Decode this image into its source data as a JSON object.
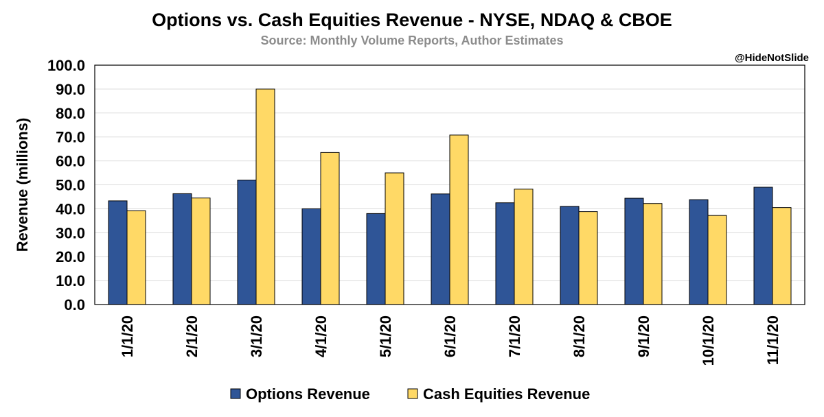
{
  "chart_data": {
    "type": "bar",
    "title": "Options vs. Cash Equities Revenue - NYSE, NDAQ & CBOE",
    "subtitle": "Source: Monthly Volume Reports, Author Estimates",
    "watermark": "@HideNotSlide",
    "xlabel": "",
    "ylabel": "Revenue (millions)",
    "ylim": [
      0,
      100
    ],
    "ytick_step": 10,
    "ytick_labels": [
      "0.0",
      "10.0",
      "20.0",
      "30.0",
      "40.0",
      "50.0",
      "60.0",
      "70.0",
      "80.0",
      "90.0",
      "100.0"
    ],
    "grid": true,
    "legend_position": "bottom",
    "categories": [
      "1/1/20",
      "2/1/20",
      "3/1/20",
      "4/1/20",
      "5/1/20",
      "6/1/20",
      "7/1/20",
      "8/1/20",
      "9/1/20",
      "10/1/20",
      "11/1/20"
    ],
    "series": [
      {
        "name": "Options Revenue",
        "color": "#2f5597",
        "values": [
          43.3,
          46.3,
          52.0,
          40.0,
          38.0,
          46.2,
          42.5,
          41.0,
          44.4,
          43.8,
          49.0
        ]
      },
      {
        "name": "Cash Equities Revenue",
        "color": "#ffd966",
        "values": [
          39.2,
          44.5,
          90.0,
          63.5,
          55.0,
          70.8,
          48.2,
          38.8,
          42.2,
          37.2,
          40.5
        ]
      }
    ]
  }
}
